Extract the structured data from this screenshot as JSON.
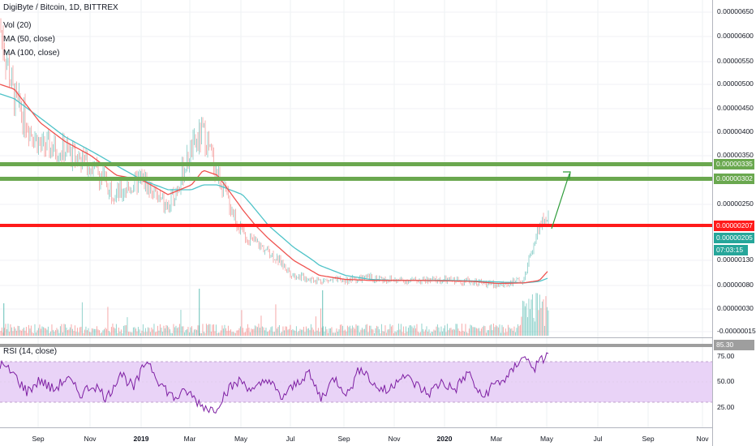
{
  "legend": {
    "title": "DigiByte / Bitcoin, 1D, BITTREX",
    "vol": "Vol (20)",
    "ma50": "MA (50, close)",
    "ma100": "MA (100, close)",
    "rsi": "RSI (14, close)"
  },
  "colors": {
    "ma50": "#ef5350",
    "ma100": "#4fc3c8",
    "rsi": "#7e1fa3",
    "rsi_band": "#e9d3f7",
    "green_level": "#6aa84f",
    "red_level": "#ff1a1a",
    "price_badge": "#26a69a",
    "grey_level": "#9e9e9e",
    "candle_up": "#26a69a",
    "candle_down": "#ef5350"
  },
  "price_axis": {
    "ticks": [
      "0.00000650",
      "0.00000600",
      "0.00000550",
      "0.00000500",
      "0.00000450",
      "0.00000400",
      "0.00000350",
      "0.00000250",
      "0.00000130",
      "0.00000080",
      "0.00000030",
      "-0.00000015"
    ],
    "level_labels": {
      "top_green": "0.00000335",
      "bottom_green": "0.00000302",
      "red": "0.00000207",
      "last_price": "0.00000205",
      "countdown": "07:03:15"
    }
  },
  "rsi_axis": {
    "ticks": [
      "75.00",
      "50.00",
      "25.00"
    ],
    "current": "85.30"
  },
  "time_axis": [
    {
      "label": "Sep",
      "bold": false
    },
    {
      "label": "Nov",
      "bold": false
    },
    {
      "label": "2019",
      "bold": true
    },
    {
      "label": "Mar",
      "bold": false
    },
    {
      "label": "May",
      "bold": false
    },
    {
      "label": "Jul",
      "bold": false
    },
    {
      "label": "Sep",
      "bold": false
    },
    {
      "label": "Nov",
      "bold": false
    },
    {
      "label": "2020",
      "bold": true
    },
    {
      "label": "Mar",
      "bold": false
    },
    {
      "label": "May",
      "bold": false
    },
    {
      "label": "Jul",
      "bold": false
    },
    {
      "label": "Sep",
      "bold": false
    },
    {
      "label": "Nov",
      "bold": false
    }
  ],
  "chart_data": {
    "type": "line",
    "title": "DigiByte / Bitcoin, 1D, BITTREX",
    "x": [
      "2018-07-15",
      "2018-08-01",
      "2018-09-01",
      "2018-10-01",
      "2018-11-01",
      "2018-12-01",
      "2019-01-01",
      "2019-02-01",
      "2019-03-01",
      "2019-03-15",
      "2019-04-01",
      "2019-05-01",
      "2019-06-01",
      "2019-07-01",
      "2019-08-01",
      "2019-09-01",
      "2019-10-01",
      "2019-11-01",
      "2019-12-01",
      "2020-01-01",
      "2020-02-01",
      "2020-03-01",
      "2020-04-01",
      "2020-04-20",
      "2020-05-01"
    ],
    "series": [
      {
        "name": "DigiByte / Bitcoin",
        "values": [
          6.2e-06,
          4.7e-06,
          3.7e-06,
          3.6e-06,
          3.3e-06,
          2.7e-06,
          3e-06,
          2.4e-06,
          3.6e-06,
          4e-06,
          3.1e-06,
          1.9e-06,
          1.5e-06,
          1e-06,
          9e-07,
          9e-07,
          9.5e-07,
          9e-07,
          9e-07,
          9e-07,
          8.8e-07,
          8e-07,
          9e-07,
          2.1e-06,
          2.2e-06
        ]
      },
      {
        "name": "MA (50, close)",
        "values": [
          5e-06,
          4.9e-06,
          4.2e-06,
          3.8e-06,
          3.5e-06,
          3.1e-06,
          3e-06,
          2.7e-06,
          2.9e-06,
          3.2e-06,
          3.1e-06,
          2.4e-06,
          1.8e-06,
          1.3e-06,
          1e-06,
          9.2e-07,
          9e-07,
          9e-07,
          9e-07,
          8.9e-07,
          8.8e-07,
          8.4e-07,
          8.5e-07,
          9e-07,
          1.1e-06
        ]
      },
      {
        "name": "MA (100, close)",
        "values": [
          4.8e-06,
          4.7e-06,
          4.3e-06,
          3.9e-06,
          3.6e-06,
          3.3e-06,
          3e-06,
          2.8e-06,
          2.8e-06,
          2.9e-06,
          2.9e-06,
          2.7e-06,
          2.1e-06,
          1.6e-06,
          1.2e-06,
          1e-06,
          9.2e-07,
          9e-07,
          9e-07,
          9e-07,
          8.9e-07,
          8.7e-07,
          8.5e-07,
          8.8e-07,
          9.5e-07
        ]
      }
    ],
    "levels": [
      3.35e-06,
      3.02e-06,
      2.07e-06
    ],
    "ylim": [
      -1.5e-07,
      6.7e-06
    ],
    "rsi": {
      "values": [
        72,
        60,
        38,
        52,
        40,
        55,
        35,
        47,
        30,
        62,
        42,
        78,
        48,
        30,
        38,
        22,
        15,
        40,
        52,
        38,
        55,
        30,
        45,
        62,
        30,
        55,
        35,
        70,
        45,
        38,
        60,
        48,
        35,
        50,
        40,
        62,
        30,
        48,
        55,
        82,
        68,
        85
      ],
      "ylim": [
        0,
        100
      ],
      "band": [
        30,
        70
      ]
    },
    "annotation": "arrow from 0.00000207 toward 0.00000335"
  }
}
